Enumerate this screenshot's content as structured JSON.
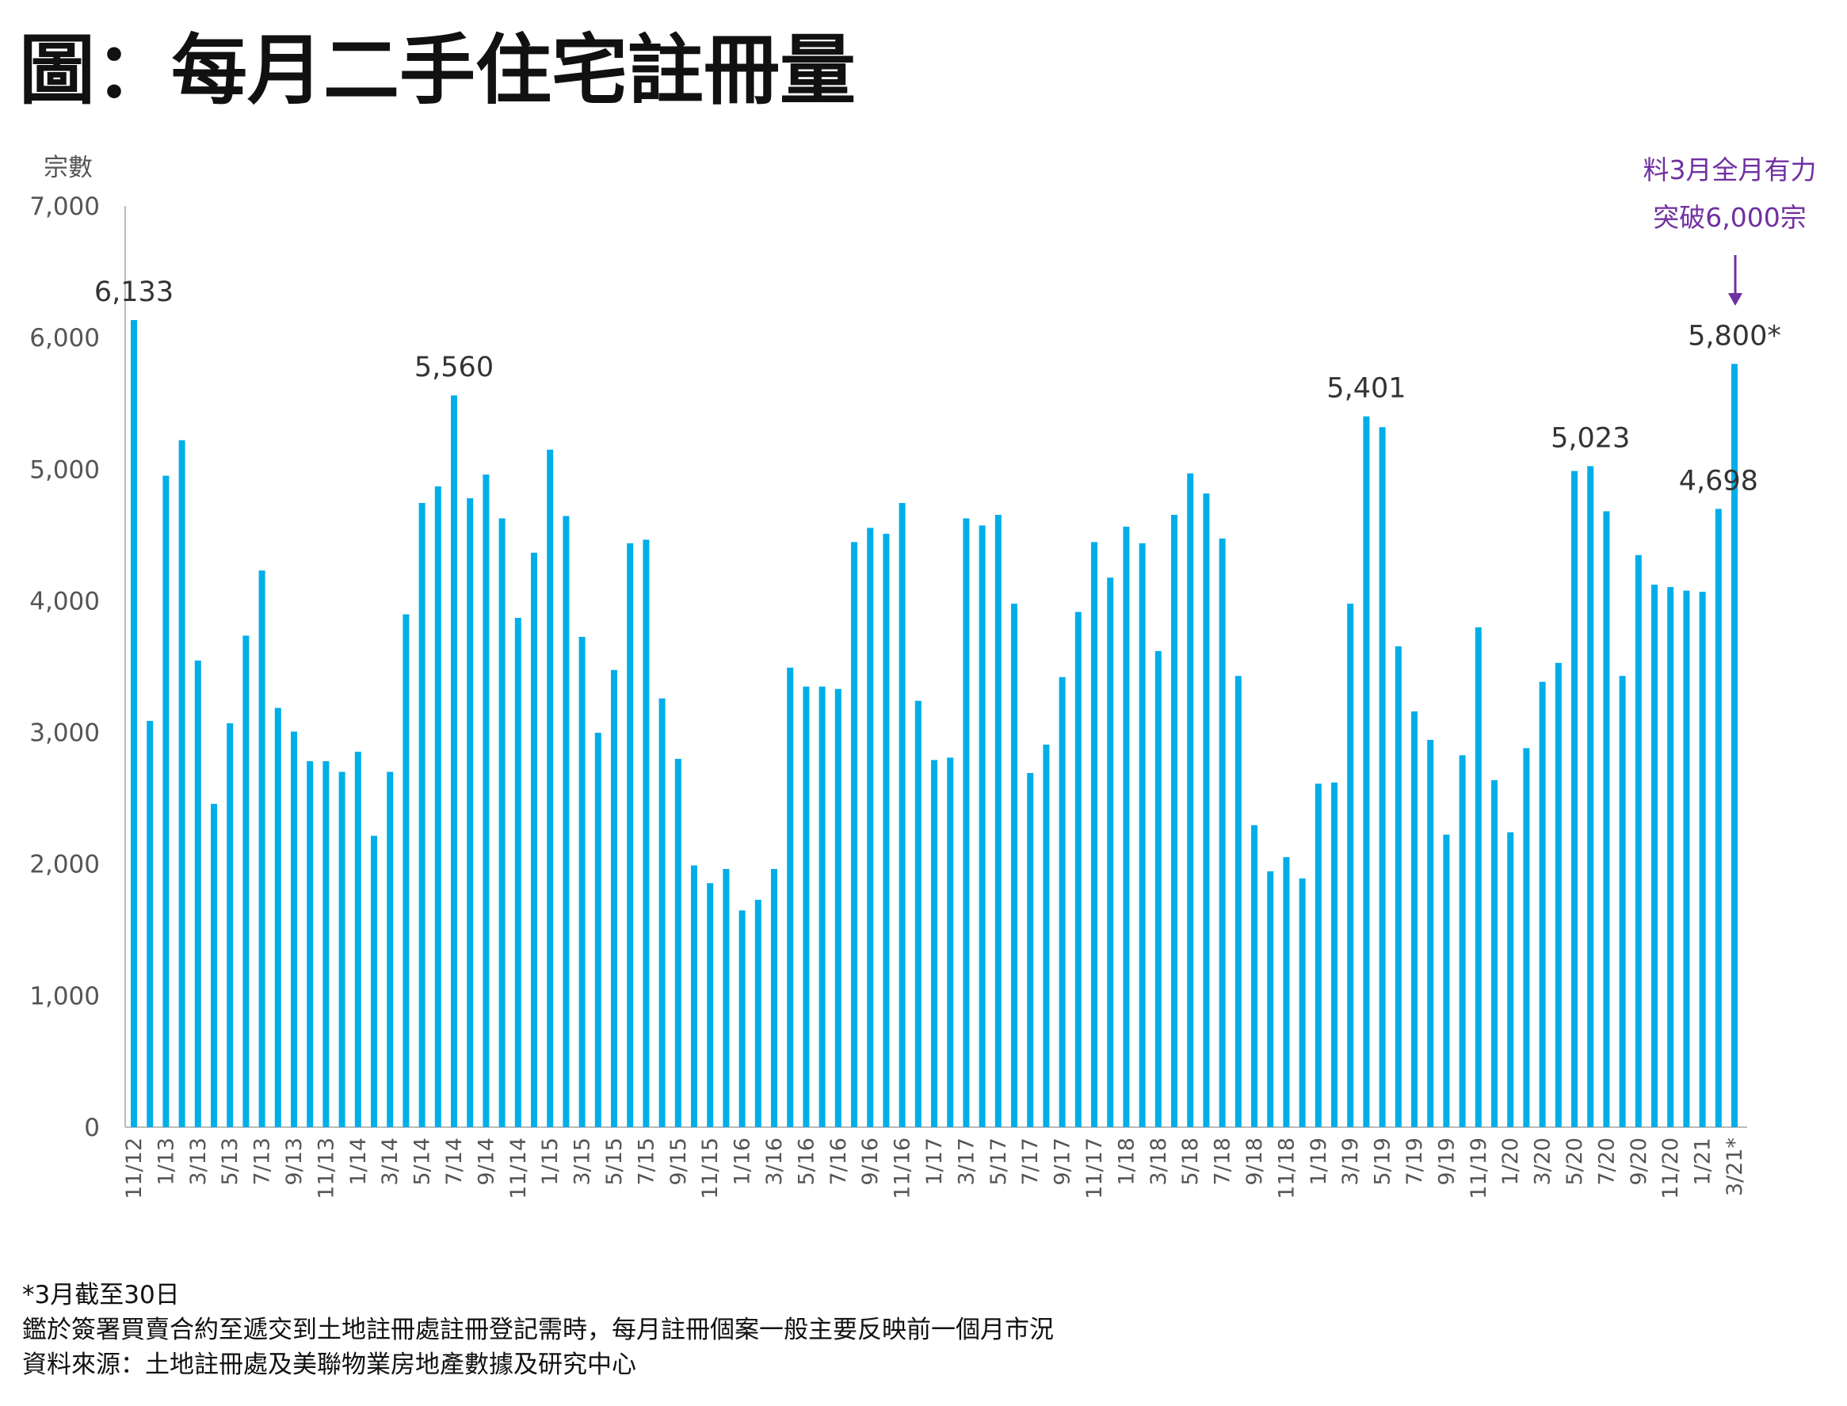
{
  "title": "圖：每月二手住宅註冊量",
  "chart_data": {
    "type": "bar",
    "title": "圖：每月二手住宅註冊量",
    "ylabel": "宗數",
    "xlabel": "",
    "ylim": [
      0,
      7000
    ],
    "yticks": [
      "0",
      "1,000",
      "2,000",
      "3,000",
      "4,000",
      "5,000",
      "6,000",
      "7,000"
    ],
    "ytick_values": [
      0,
      1000,
      2000,
      3000,
      4000,
      5000,
      6000,
      7000
    ],
    "bar_color": "#00aee8",
    "categories": [
      "11/12",
      "12/12",
      "1/13",
      "2/13",
      "3/13",
      "4/13",
      "5/13",
      "6/13",
      "7/13",
      "8/13",
      "9/13",
      "10/13",
      "11/13",
      "12/13",
      "1/14",
      "2/14",
      "3/14",
      "4/14",
      "5/14",
      "6/14",
      "7/14",
      "8/14",
      "9/14",
      "10/14",
      "11/14",
      "12/14",
      "1/15",
      "2/15",
      "3/15",
      "4/15",
      "5/15",
      "6/15",
      "7/15",
      "8/15",
      "9/15",
      "10/15",
      "11/15",
      "12/15",
      "1/16",
      "2/16",
      "3/16",
      "4/16",
      "5/16",
      "6/16",
      "7/16",
      "8/16",
      "9/16",
      "10/16",
      "11/16",
      "12/16",
      "1/17",
      "2/17",
      "3/17",
      "4/17",
      "5/17",
      "6/17",
      "7/17",
      "8/17",
      "9/17",
      "10/17",
      "11/17",
      "12/17",
      "1/18",
      "2/18",
      "3/18",
      "4/18",
      "5/18",
      "6/18",
      "7/18",
      "8/18",
      "9/18",
      "10/18",
      "11/18",
      "12/18",
      "1/19",
      "2/19",
      "3/19",
      "4/19",
      "5/19",
      "6/19",
      "7/19",
      "8/19",
      "9/19",
      "10/19",
      "11/19",
      "12/19",
      "1/20",
      "2/20",
      "3/20",
      "4/20",
      "5/20",
      "6/20",
      "7/20",
      "8/20",
      "9/20",
      "10/20",
      "11/20",
      "12/20",
      "1/21",
      "2/21",
      "3/21*"
    ],
    "values": [
      6133,
      3087,
      4950,
      5220,
      3546,
      2457,
      3069,
      3735,
      4230,
      3186,
      3006,
      2781,
      2781,
      2700,
      2853,
      2214,
      2700,
      3897,
      4743,
      4869,
      5560,
      4779,
      4959,
      4626,
      3870,
      4365,
      5148,
      4644,
      3726,
      2997,
      3474,
      4437,
      4464,
      3258,
      2799,
      1989,
      1854,
      1962,
      1647,
      1728,
      1962,
      3492,
      3348,
      3348,
      3330,
      4446,
      4554,
      4509,
      4743,
      3240,
      2790,
      2808,
      4626,
      4572,
      4653,
      3978,
      2691,
      2907,
      3420,
      3915,
      4446,
      4176,
      4563,
      4437,
      3618,
      4653,
      4968,
      4815,
      4473,
      3429,
      2295,
      1944,
      2052,
      1890,
      2610,
      2619,
      3978,
      5401,
      5319,
      3654,
      3159,
      2943,
      2223,
      2826,
      3798,
      2637,
      2241,
      2880,
      3384,
      3528,
      4986,
      5023,
      4680,
      3429,
      4347,
      4122,
      4104,
      4077,
      4068,
      4698,
      5800
    ],
    "data_labels": [
      {
        "index": 0,
        "text": "6,133"
      },
      {
        "index": 20,
        "text": "5,560"
      },
      {
        "index": 77,
        "text": "5,401"
      },
      {
        "index": 91,
        "text": "5,023"
      },
      {
        "index": 99,
        "text": "4,698"
      },
      {
        "index": 100,
        "text": "5,800*"
      }
    ],
    "annotation": {
      "line1": "料3月全月有力",
      "line2": "突破6,000宗",
      "color": "#7030a0"
    }
  },
  "footnotes": [
    "*3月截至30日",
    "鑑於簽署買賣合約至遞交到土地註冊處註冊登記需時，每月註冊個案一般主要反映前一個月市況",
    "資料來源：土地註冊處及美聯物業房地產數據及研究中心"
  ]
}
